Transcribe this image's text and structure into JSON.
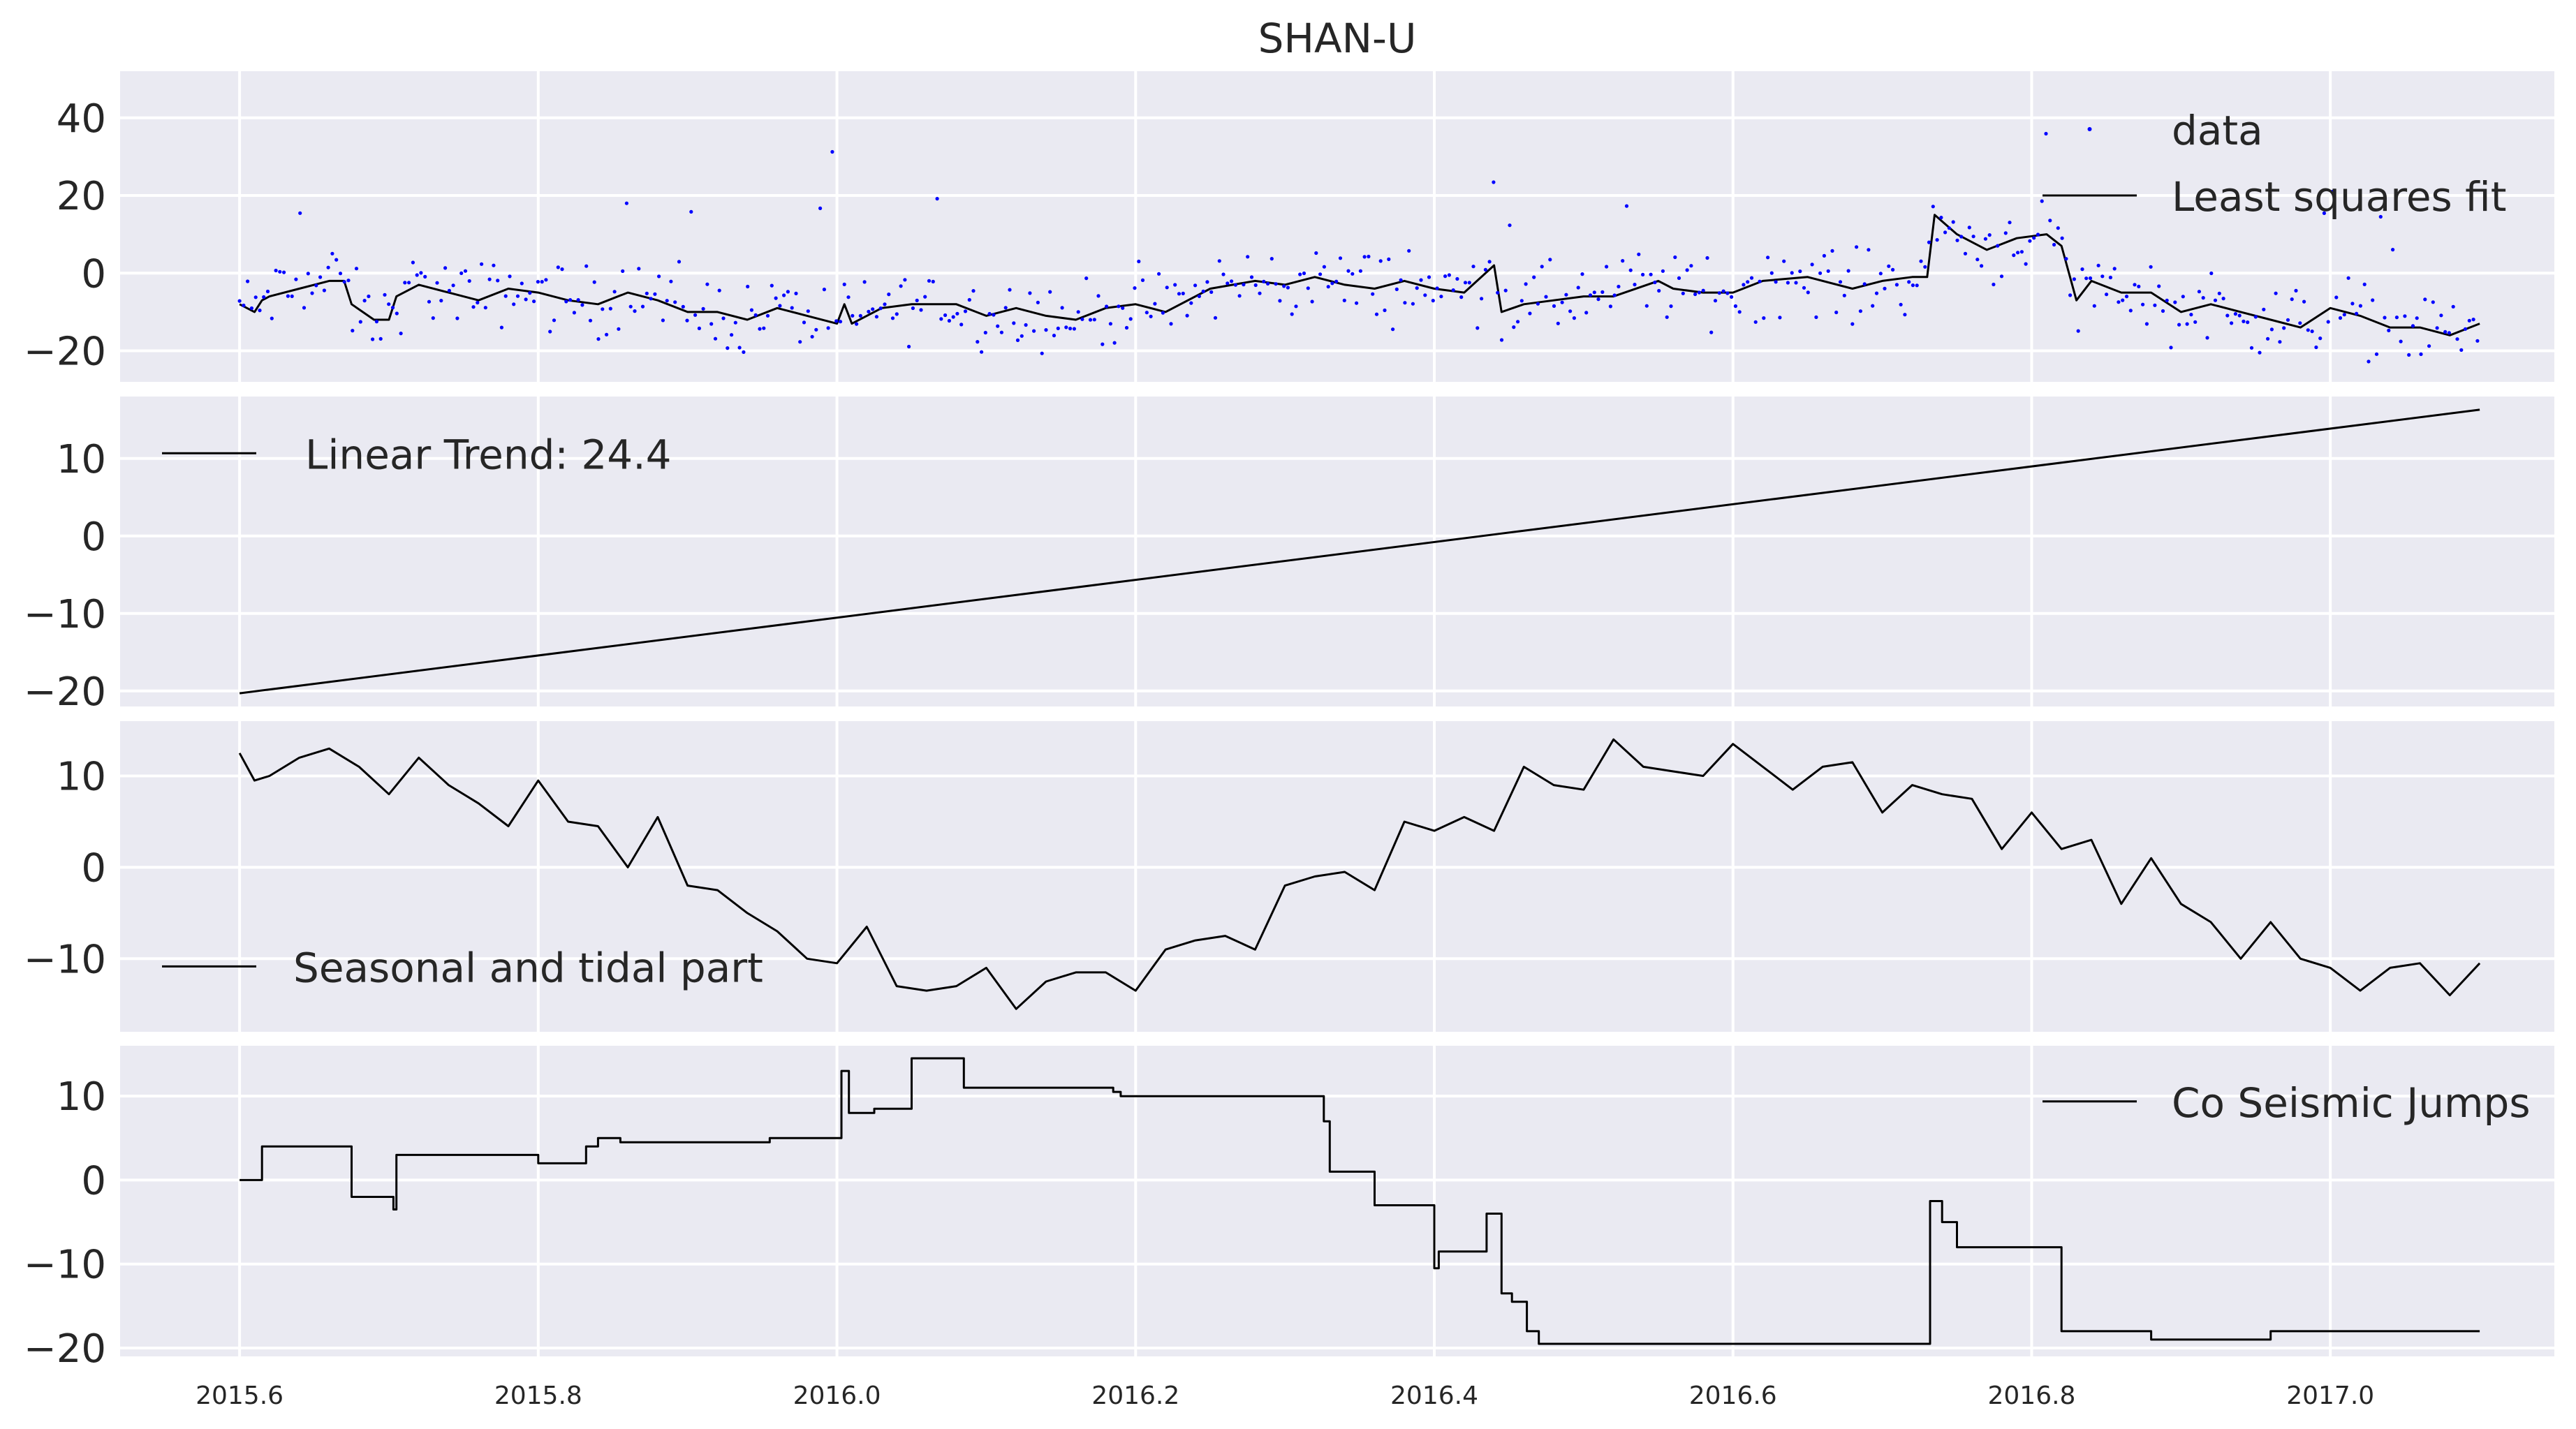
{
  "title": "SHAN-U",
  "colors": {
    "panel_background": "#EAEAF2",
    "grid": "#FFFFFF",
    "line": "#000000",
    "data_points": "#0000FF"
  },
  "x_axis": {
    "range": [
      2015.52,
      2017.15
    ],
    "ticks": [
      2015.6,
      2015.8,
      2016.0,
      2016.2,
      2016.4,
      2016.6,
      2016.8,
      2017.0
    ],
    "tick_labels": [
      "2015.6",
      "2015.8",
      "2016.0",
      "2016.2",
      "2016.4",
      "2016.6",
      "2016.8",
      "2017.0"
    ]
  },
  "chart_data": [
    {
      "type": "scatter+line",
      "panel": "top",
      "title": "SHAN-U",
      "ylim": [
        -28,
        52
      ],
      "yticks": [
        -20,
        0,
        20,
        40
      ],
      "ytick_labels": [
        "−20",
        "0",
        "20",
        "40"
      ],
      "grid": true,
      "legend_placement": "upper-right",
      "series": [
        {
          "name": "data",
          "style": "points",
          "color": "#0000FF",
          "note_values": "daily observations scattered about the least squares fit, roughly ±10, range about −25 to 48"
        },
        {
          "name": "Least squares fit",
          "style": "line",
          "color": "#000000",
          "x": [
            2015.6,
            2015.61,
            2015.615,
            2015.62,
            2015.64,
            2015.66,
            2015.67,
            2015.675,
            2015.69,
            2015.7,
            2015.705,
            2015.72,
            2015.74,
            2015.76,
            2015.78,
            2015.8,
            2015.82,
            2015.84,
            2015.86,
            2015.88,
            2015.9,
            2015.92,
            2015.94,
            2015.96,
            2015.98,
            2016.0,
            2016.005,
            2016.01,
            2016.03,
            2016.05,
            2016.08,
            2016.1,
            2016.12,
            2016.14,
            2016.16,
            2016.18,
            2016.2,
            2016.22,
            2016.25,
            2016.28,
            2016.3,
            2016.32,
            2016.34,
            2016.36,
            2016.38,
            2016.4,
            2016.42,
            2016.44,
            2016.445,
            2016.46,
            2016.48,
            2016.5,
            2016.52,
            2016.55,
            2016.56,
            2016.58,
            2016.6,
            2016.62,
            2016.65,
            2016.68,
            2016.7,
            2016.72,
            2016.73,
            2016.735,
            2016.75,
            2016.77,
            2016.79,
            2016.81,
            2016.82,
            2016.83,
            2016.84,
            2016.86,
            2016.88,
            2016.9,
            2016.92,
            2016.94,
            2016.96,
            2016.98,
            2017.0,
            2017.02,
            2017.04,
            2017.06,
            2017.08,
            2017.1
          ],
          "y": [
            -8,
            -10,
            -7,
            -6,
            -4,
            -2,
            -2,
            -8,
            -12,
            -12,
            -6,
            -3,
            -5,
            -7,
            -4,
            -5,
            -7,
            -8,
            -5,
            -7,
            -10,
            -10,
            -12,
            -9,
            -11,
            -13,
            -8,
            -13,
            -9,
            -8,
            -8,
            -11,
            -9,
            -11,
            -12,
            -9,
            -8,
            -10,
            -4,
            -2,
            -3,
            -1,
            -3,
            -4,
            -2,
            -4,
            -5,
            2,
            -10,
            -8,
            -7,
            -6,
            -6,
            -2,
            -4,
            -5,
            -5,
            -2,
            -1,
            -4,
            -2,
            -1,
            -1,
            15,
            10,
            6,
            9,
            10,
            7,
            -7,
            -2,
            -5,
            -5,
            -10,
            -8,
            -10,
            -12,
            -14,
            -9,
            -11,
            -14,
            -14,
            -16,
            -13
          ]
        }
      ]
    },
    {
      "type": "line",
      "panel": "linear-trend",
      "ylim": [
        -22,
        18
      ],
      "yticks": [
        -20,
        -10,
        0,
        10
      ],
      "ytick_labels": [
        "−20",
        "−10",
        "0",
        "10"
      ],
      "grid": true,
      "legend_placement": "upper-left",
      "series": [
        {
          "name": "Linear Trend: 24.4",
          "color": "#000000",
          "x": [
            2015.6,
            2017.1
          ],
          "y": [
            -20.3,
            16.3
          ]
        }
      ]
    },
    {
      "type": "line",
      "panel": "seasonal",
      "ylim": [
        -18,
        16
      ],
      "yticks": [
        -10,
        0,
        10
      ],
      "ytick_labels": [
        "−10",
        "0",
        "10"
      ],
      "grid": true,
      "legend_placement": "lower-left",
      "series": [
        {
          "name": "Seasonal and tidal part",
          "color": "#000000",
          "x": [
            2015.6,
            2015.61,
            2015.62,
            2015.64,
            2015.66,
            2015.68,
            2015.7,
            2015.72,
            2015.74,
            2015.76,
            2015.78,
            2015.8,
            2015.82,
            2015.84,
            2015.86,
            2015.88,
            2015.9,
            2015.92,
            2015.94,
            2015.96,
            2015.98,
            2016.0,
            2016.02,
            2016.04,
            2016.06,
            2016.08,
            2016.1,
            2016.12,
            2016.14,
            2016.16,
            2016.18,
            2016.2,
            2016.22,
            2016.24,
            2016.26,
            2016.28,
            2016.3,
            2016.32,
            2016.34,
            2016.36,
            2016.38,
            2016.4,
            2016.42,
            2016.44,
            2016.46,
            2016.48,
            2016.5,
            2016.52,
            2016.54,
            2016.56,
            2016.58,
            2016.6,
            2016.62,
            2016.64,
            2016.66,
            2016.68,
            2016.7,
            2016.72,
            2016.74,
            2016.76,
            2016.78,
            2016.8,
            2016.82,
            2016.84,
            2016.86,
            2016.88,
            2016.9,
            2016.92,
            2016.94,
            2016.96,
            2016.98,
            2017.0,
            2017.02,
            2017.04,
            2017.06,
            2017.08,
            2017.1
          ],
          "y": [
            12.5,
            9.5,
            10,
            12,
            13,
            11,
            8,
            12,
            9,
            7,
            4.5,
            9.5,
            5,
            4.5,
            0,
            5.5,
            -2,
            -2.5,
            -5,
            -7,
            -10,
            -10.5,
            -6.5,
            -13,
            -13.5,
            -13,
            -11,
            -15.5,
            -12.5,
            -11.5,
            -11.5,
            -13.5,
            -9,
            -8,
            -7.5,
            -9,
            -2,
            -1,
            -0.5,
            -2.5,
            5,
            4,
            5.5,
            4,
            11,
            9,
            8.5,
            14,
            11,
            10.5,
            10,
            13.5,
            11,
            8.5,
            11,
            11.5,
            6,
            9,
            8,
            7.5,
            2,
            6,
            2,
            3,
            -4,
            1,
            -4,
            -6,
            -10,
            -6,
            -10,
            -11,
            -13.5,
            -11,
            -10.5,
            -14,
            -10.5
          ]
        }
      ]
    },
    {
      "type": "line",
      "panel": "jumps",
      "ylim": [
        -21,
        16
      ],
      "yticks": [
        -20,
        -10,
        0,
        10
      ],
      "ytick_labels": [
        "−20",
        "−10",
        "0",
        "10"
      ],
      "grid": true,
      "legend_placement": "upper-right",
      "series": [
        {
          "name": "Co Seismic Jumps",
          "color": "#000000",
          "style": "step",
          "x": [
            2015.6,
            2015.615,
            2015.615,
            2015.675,
            2015.675,
            2015.703,
            2015.703,
            2015.705,
            2015.705,
            2015.8,
            2015.8,
            2015.832,
            2015.832,
            2015.84,
            2015.84,
            2015.855,
            2015.855,
            2015.955,
            2015.955,
            2016.003,
            2016.003,
            2016.008,
            2016.008,
            2016.025,
            2016.025,
            2016.05,
            2016.05,
            2016.085,
            2016.085,
            2016.185,
            2016.185,
            2016.19,
            2016.19,
            2016.326,
            2016.326,
            2016.33,
            2016.33,
            2016.36,
            2016.36,
            2016.4,
            2016.4,
            2016.403,
            2016.403,
            2016.413,
            2016.413,
            2016.435,
            2016.435,
            2016.445,
            2016.445,
            2016.452,
            2016.452,
            2016.462,
            2016.462,
            2016.47,
            2016.47,
            2016.55,
            2016.55,
            2016.732,
            2016.732,
            2016.74,
            2016.74,
            2016.75,
            2016.75,
            2016.785,
            2016.785,
            2016.82,
            2016.82,
            2016.88,
            2016.88,
            2016.96,
            2016.96,
            2017.1
          ],
          "y": [
            0,
            0,
            4,
            4,
            -2,
            -2,
            -3.5,
            -3.5,
            3,
            3,
            2,
            2,
            4,
            4,
            5,
            5,
            4.5,
            4.5,
            5,
            5,
            13,
            13,
            8,
            8,
            8.5,
            8.5,
            14.5,
            14.5,
            11,
            11,
            10.5,
            10.5,
            10,
            10,
            7,
            7,
            1,
            1,
            -3,
            -3,
            -10.5,
            -10.5,
            -8.5,
            -8.5,
            -8.5,
            -8.5,
            -4,
            -4,
            -13.5,
            -13.5,
            -14.5,
            -14.5,
            -18,
            -18,
            -19.5,
            -19.5,
            -19.5,
            -19.5,
            -2.5,
            -2.5,
            -5,
            -5,
            -8,
            -8,
            -8,
            -8,
            -18,
            -18,
            -19,
            -19,
            -18,
            -18
          ]
        }
      ]
    }
  ]
}
